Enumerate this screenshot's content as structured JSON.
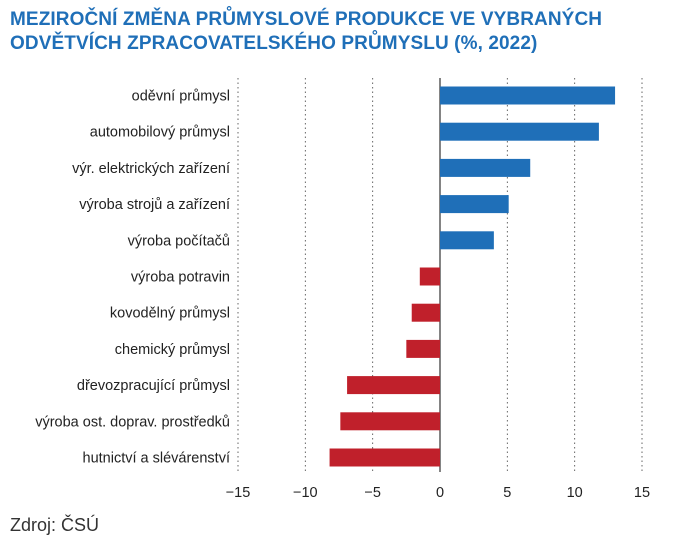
{
  "title_lines": [
    "MEZIROČNÍ ZMĚNA PRŮMYSLOVÉ PRODUKCE VE VYBRANÝCH",
    "ODVĚTVÍCH ZPRACOVATELSKÉHO PRŮMYSLU (%, 2022)"
  ],
  "source": "Zdroj: ČSÚ",
  "colors": {
    "positive": "#1f6fb8",
    "negative": "#c0202b",
    "title": "#1f6fb8"
  },
  "chart_data": {
    "type": "bar",
    "orientation": "horizontal",
    "title": "MEZIROČNÍ ZMĚNA PRŮMYSLOVÉ PRODUKCE VE VYBRANÝCH ODVĚTVÍCH ZPRACOVATELSKÉHO PRŮMYSLU (%, 2022)",
    "categories": [
      "oděvní průmysl",
      "automobilový průmysl",
      "výr. elektrických zařízení",
      "výroba strojů a zařízení",
      "výroba počítačů",
      "výroba potravin",
      "kovodělný průmysl",
      "chemický průmysl",
      "dřevozpracující průmysl",
      "výroba ost. doprav. prostředků",
      "hutnictví a slévárenství"
    ],
    "values": [
      13.0,
      11.8,
      6.7,
      5.1,
      4.0,
      -1.5,
      -2.1,
      -2.5,
      -6.9,
      -7.4,
      -8.2
    ],
    "xlim": [
      -15,
      15
    ],
    "xticks": [
      -15,
      -10,
      -5,
      0,
      5,
      10,
      15
    ],
    "xtick_labels": [
      "−15",
      "−10",
      "−5",
      "0",
      "5",
      "10",
      "15"
    ],
    "grid": "vertical dotted"
  }
}
